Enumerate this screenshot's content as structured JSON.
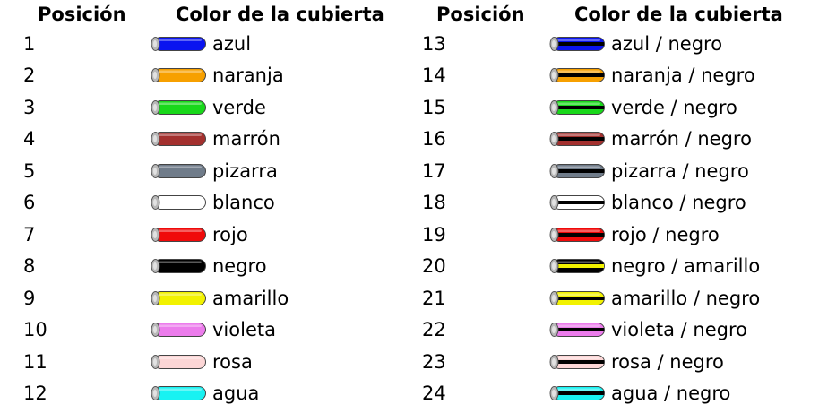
{
  "headers": {
    "position": "Posición",
    "color": "Color de la cubierta"
  },
  "left_rows": [
    {
      "position": "1",
      "name": "azul",
      "color": "#0a14f0"
    },
    {
      "position": "2",
      "name": "naranja",
      "color": "#f7a000"
    },
    {
      "position": "3",
      "name": "verde",
      "color": "#18d81a"
    },
    {
      "position": "4",
      "name": "marrón",
      "color": "#a3302e"
    },
    {
      "position": "5",
      "name": "pizarra",
      "color": "#707c8a"
    },
    {
      "position": "6",
      "name": "blanco",
      "color": "#ffffff"
    },
    {
      "position": "7",
      "name": "rojo",
      "color": "#f00a0a"
    },
    {
      "position": "8",
      "name": "negro",
      "color": "#000000"
    },
    {
      "position": "9",
      "name": "amarillo",
      "color": "#f2f200"
    },
    {
      "position": "10",
      "name": "violeta",
      "color": "#ec7cec"
    },
    {
      "position": "11",
      "name": "rosa",
      "color": "#fcd6d6"
    },
    {
      "position": "12",
      "name": "agua",
      "color": "#18f2f2"
    }
  ],
  "right_rows": [
    {
      "position": "13",
      "name": "azul / negro",
      "color": "#0a14f0",
      "stripe": "#000000"
    },
    {
      "position": "14",
      "name": "naranja / negro",
      "color": "#f7a000",
      "stripe": "#000000"
    },
    {
      "position": "15",
      "name": "verde / negro",
      "color": "#18d81a",
      "stripe": "#000000"
    },
    {
      "position": "16",
      "name": "marrón / negro",
      "color": "#a3302e",
      "stripe": "#000000"
    },
    {
      "position": "17",
      "name": "pizarra / negro",
      "color": "#707c8a",
      "stripe": "#000000"
    },
    {
      "position": "18",
      "name": "blanco / negro",
      "color": "#ffffff",
      "stripe": "#000000"
    },
    {
      "position": "19",
      "name": "rojo / negro",
      "color": "#f00a0a",
      "stripe": "#000000"
    },
    {
      "position": "20",
      "name": "negro / amarillo",
      "color": "#000000",
      "stripe": "#f2f200"
    },
    {
      "position": "21",
      "name": "amarillo / negro",
      "color": "#f2f200",
      "stripe": "#000000"
    },
    {
      "position": "22",
      "name": "violeta / negro",
      "color": "#ec7cec",
      "stripe": "#000000"
    },
    {
      "position": "23",
      "name": "rosa / negro",
      "color": "#fcd6d6",
      "stripe": "#000000"
    },
    {
      "position": "24",
      "name": "agua / negro",
      "color": "#18f2f2",
      "stripe": "#000000"
    }
  ]
}
